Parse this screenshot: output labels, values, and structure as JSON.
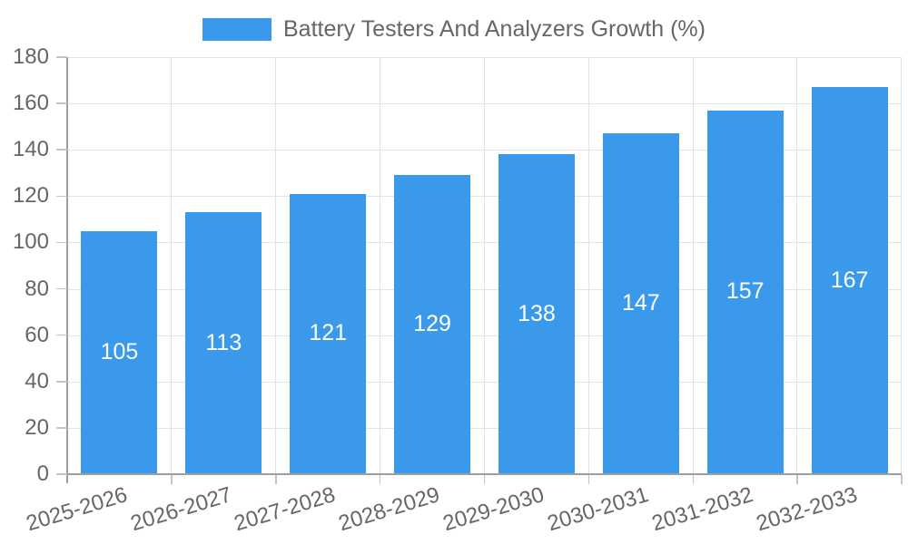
{
  "chart_data": {
    "type": "bar",
    "title": "Battery Testers And Analyzers Growth (%)",
    "legend": {
      "position": "top",
      "label": "Battery Testers And Analyzers Growth (%)"
    },
    "categories": [
      "2025-2026",
      "2026-2027",
      "2027-2028",
      "2028-2029",
      "2029-2030",
      "2030-2031",
      "2031-2032",
      "2032-2033"
    ],
    "values": [
      105,
      113,
      121,
      129,
      138,
      147,
      157,
      167
    ],
    "value_labels_shown": true,
    "xlabel": "",
    "ylabel": "",
    "ylim": [
      0,
      180
    ],
    "ytick_step": 20,
    "yticks": [
      0,
      20,
      40,
      60,
      80,
      100,
      120,
      140,
      160,
      180
    ],
    "grid": "on",
    "x_label_rotation_deg": -17
  },
  "colors": {
    "bar": "#3b99ec",
    "value_label": "#ffffff",
    "axis_line": "#9e9e9e",
    "gridline": "#e3e3e6",
    "tick": "#c4c4c4",
    "text": "#666666",
    "background": "#ffffff"
  }
}
